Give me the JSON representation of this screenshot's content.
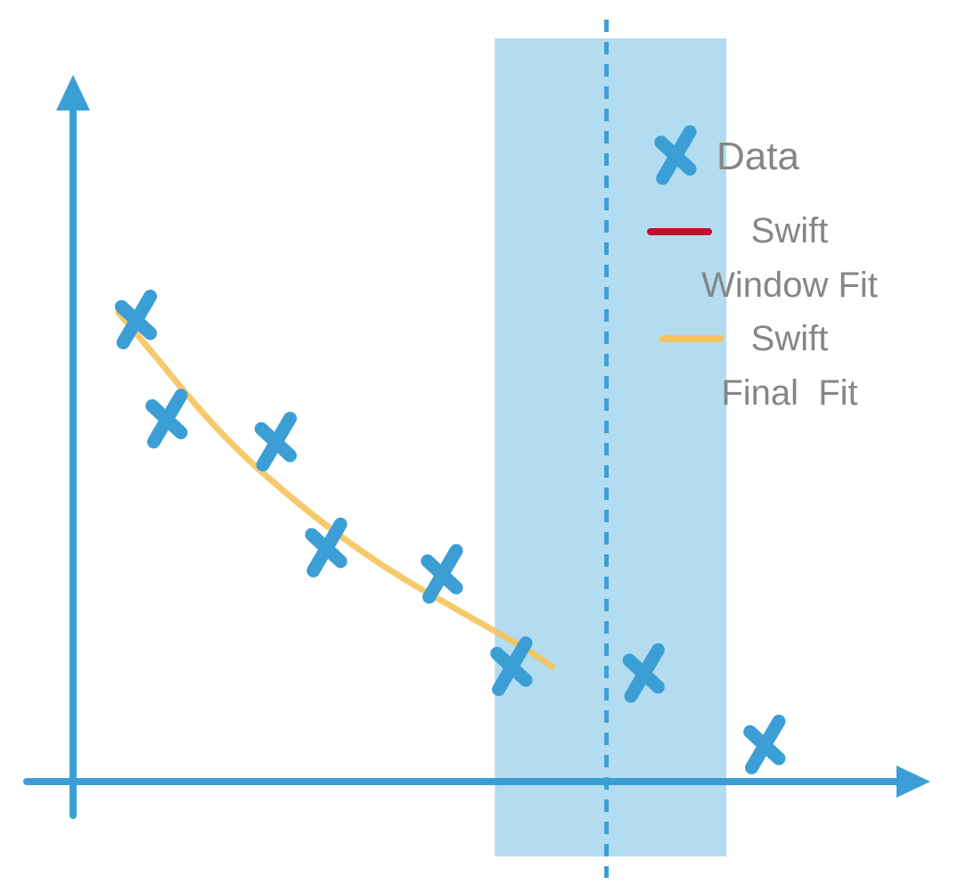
{
  "chart_data": {
    "type": "scatter",
    "title": "",
    "xlabel": "",
    "ylabel": "",
    "xlim": [
      0,
      10
    ],
    "ylim": [
      0,
      10
    ],
    "axis_tick_labels": "none",
    "grid": false,
    "legend_placement": "top-right",
    "series": [
      {
        "name": "Data",
        "kind": "scatter",
        "marker": "x-icon",
        "color": "#3b9fd6",
        "x": [
          0.76,
          1.13,
          2.45,
          3.06,
          4.46,
          5.3,
          6.9,
          8.36
        ],
        "y": [
          6.85,
          5.38,
          5.04,
          3.47,
          3.08,
          1.71,
          1.61,
          0.55
        ]
      },
      {
        "name": "Swift Window Fit",
        "kind": "line",
        "color": "#c0102c",
        "x": [],
        "y": []
      },
      {
        "name": "Swift Final Fit",
        "kind": "line",
        "color": "#f5c45c",
        "x": [
          0.55,
          1.0,
          1.5,
          2.0,
          2.5,
          3.0,
          3.5,
          4.0,
          4.5,
          5.0,
          5.5,
          5.8
        ],
        "y": [
          6.95,
          6.3,
          5.55,
          4.9,
          4.35,
          3.85,
          3.4,
          3.0,
          2.65,
          2.3,
          1.95,
          1.7
        ]
      }
    ],
    "annotations": [
      {
        "type": "shaded-window",
        "x_start": 5.1,
        "x_end": 7.9,
        "color": "#b3dcf0"
      },
      {
        "type": "vertical-dashed-line",
        "x": 6.45,
        "color": "#3b9fd6"
      }
    ],
    "legend": [
      {
        "label": "Data",
        "symbol": "x-icon"
      },
      {
        "label_lines": [
          "Swift",
          "Window Fit"
        ],
        "symbol": "line",
        "color": "#c0102c"
      },
      {
        "label_lines": [
          "Swift",
          "Final  Fit"
        ],
        "symbol": "line",
        "color": "#f5c45c"
      }
    ]
  }
}
